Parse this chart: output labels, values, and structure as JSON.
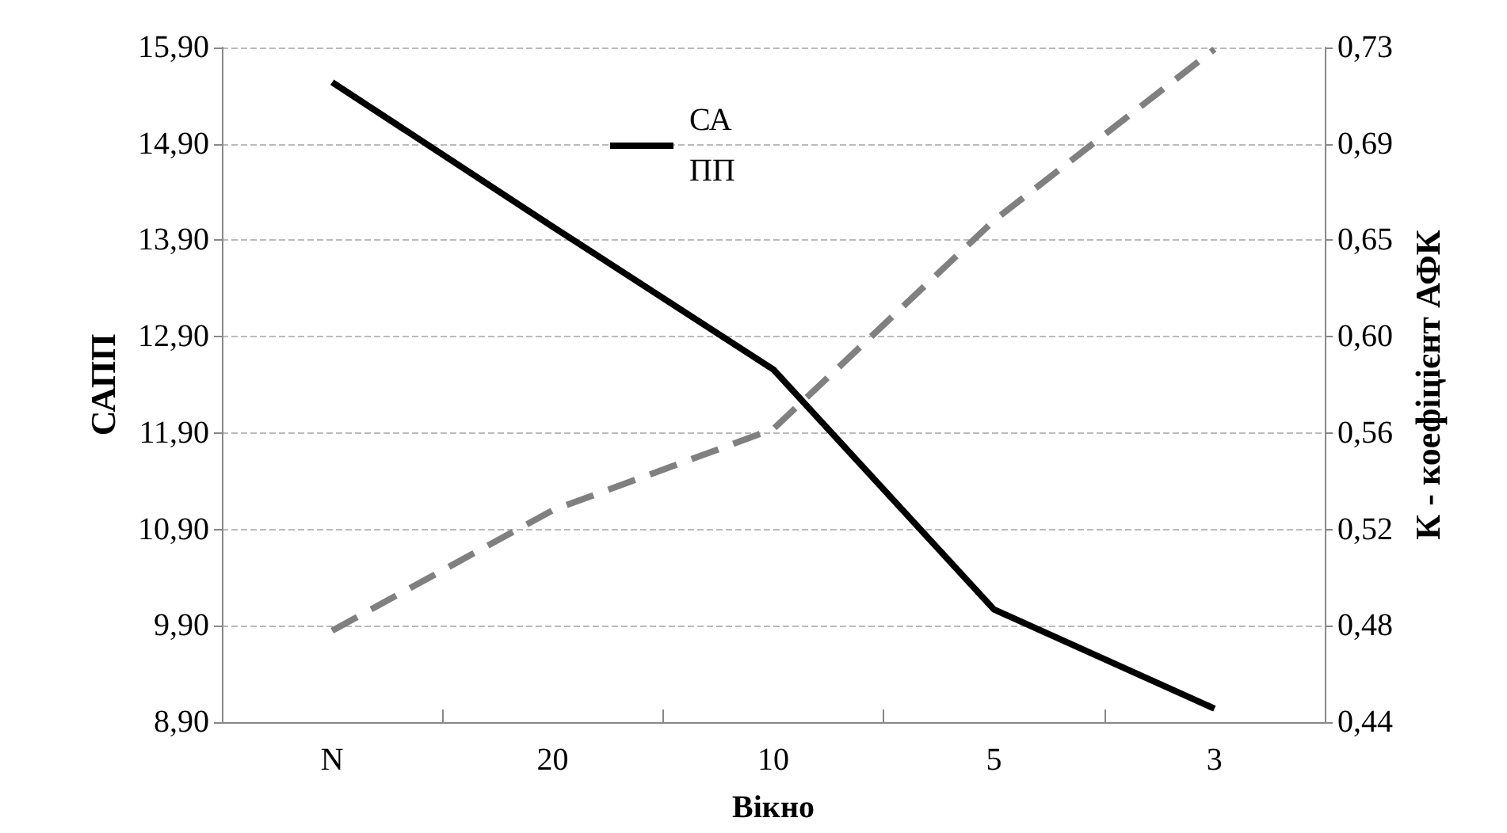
{
  "chart_data": {
    "type": "line",
    "xlabel": "Вікно",
    "ylabel": "САПП",
    "y2label": "К - коефіцієнт АФК",
    "categories": [
      "N",
      "20",
      "10",
      "5",
      "3"
    ],
    "series": [
      {
        "name": "САПП",
        "color": "#000000",
        "values": [
          15.54,
          14.04,
          12.56,
          10.07,
          9.04
        ],
        "line_style": "solid"
      },
      {
        "color": "#808080",
        "values": [
          0.478,
          0.53,
          0.565,
          0.655,
          0.729
        ],
        "axis": "y2",
        "line_style": "dashed"
      }
    ],
    "ylim": [
      8.9,
      15.9
    ],
    "yticks": [
      {
        "value": 8.9,
        "label": "8,90"
      },
      {
        "value": 9.9,
        "label": "9,90"
      },
      {
        "value": 10.9,
        "label": "10,90"
      },
      {
        "value": 11.9,
        "label": "11,90"
      },
      {
        "value": 12.9,
        "label": "12,90"
      },
      {
        "value": 13.9,
        "label": "13,90"
      },
      {
        "value": 14.9,
        "label": "14,90"
      },
      {
        "value": 15.9,
        "label": "15,90"
      }
    ],
    "y2lim": [
      0.4385,
      0.7297
    ],
    "y2ticks": [
      {
        "value": 0.4385,
        "label": "0,44"
      },
      {
        "value": 0.4801,
        "label": "0,48"
      },
      {
        "value": 0.5217,
        "label": "0,52"
      },
      {
        "value": 0.5633,
        "label": "0,56"
      },
      {
        "value": 0.6049,
        "label": "0,60"
      },
      {
        "value": 0.6465,
        "label": "0,65"
      },
      {
        "value": 0.6881,
        "label": "0,69"
      },
      {
        "value": 0.7297,
        "label": "0,73"
      }
    ],
    "grid": "y",
    "legend": "top",
    "marker": "none"
  }
}
